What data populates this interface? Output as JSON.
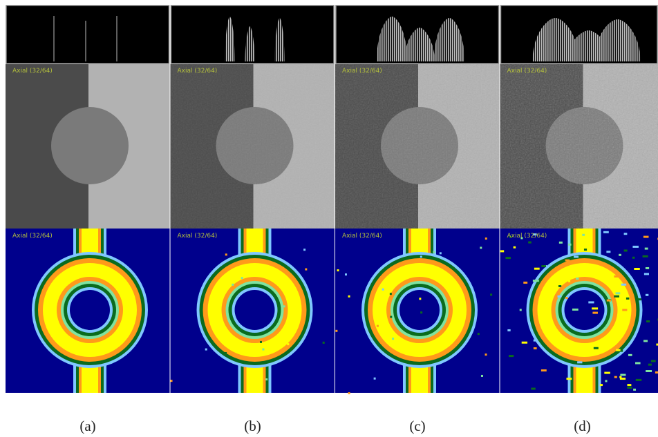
{
  "panels": [
    {
      "image_label": "Axial (32/64)",
      "map_label": "Axial (32/64)",
      "caption": "(a)"
    },
    {
      "image_label": "Axial (32/64)",
      "map_label": "Axial (32/64)",
      "caption": "(b)"
    },
    {
      "image_label": "Axial (32/64)",
      "map_label": "Axial (32/64)",
      "caption": "(c)"
    },
    {
      "image_label": "Axial (32/64)",
      "map_label": "Axial (32/64)",
      "caption": "(d)"
    }
  ]
}
